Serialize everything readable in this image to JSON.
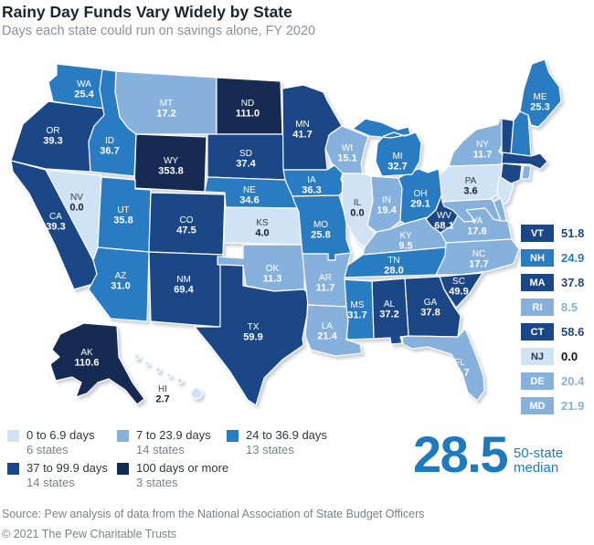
{
  "header": {
    "title": "Rainy Day Funds Vary Widely by State",
    "subtitle": "Days each state could run on savings alone, FY 2020"
  },
  "legend": {
    "categories": [
      {
        "id": 1,
        "label": "0 to 6.9 days",
        "count_label": "6 states",
        "color": "#cfe3f5",
        "text_color": "#16202a"
      },
      {
        "id": 2,
        "label": "7 to 23.9 days",
        "count_label": "14 states",
        "color": "#86b1dc",
        "text_color": "#ffffff"
      },
      {
        "id": 3,
        "label": "24 to 36.9 days",
        "count_label": "13 states",
        "color": "#2a7cc2",
        "text_color": "#ffffff"
      },
      {
        "id": 4,
        "label": "37 to 99.9 days",
        "count_label": "14 states",
        "color": "#1c4787",
        "text_color": "#ffffff"
      },
      {
        "id": 5,
        "label": "100 days or more",
        "count_label": "3 states",
        "color": "#122b52",
        "text_color": "#ffffff"
      }
    ]
  },
  "chart_data": {
    "type": "choropleth-map",
    "title": "Rainy Day Funds Vary Widely by State",
    "unit": "days",
    "states": [
      {
        "abbr": "WA",
        "value": "25.4",
        "category": 3
      },
      {
        "abbr": "OR",
        "value": "39.3",
        "category": 4
      },
      {
        "abbr": "CA",
        "value": "39.3",
        "category": 4
      },
      {
        "abbr": "NV",
        "value": "0.0",
        "category": 1
      },
      {
        "abbr": "ID",
        "value": "36.7",
        "category": 3
      },
      {
        "abbr": "MT",
        "value": "17.2",
        "category": 2
      },
      {
        "abbr": "WY",
        "value": "353.8",
        "category": 5
      },
      {
        "abbr": "UT",
        "value": "35.8",
        "category": 3
      },
      {
        "abbr": "CO",
        "value": "47.5",
        "category": 4
      },
      {
        "abbr": "AZ",
        "value": "31.0",
        "category": 3
      },
      {
        "abbr": "NM",
        "value": "69.4",
        "category": 4
      },
      {
        "abbr": "ND",
        "value": "111.0",
        "category": 5
      },
      {
        "abbr": "SD",
        "value": "37.4",
        "category": 4
      },
      {
        "abbr": "NE",
        "value": "34.6",
        "category": 3
      },
      {
        "abbr": "KS",
        "value": "4.0",
        "category": 1
      },
      {
        "abbr": "OK",
        "value": "11.3",
        "category": 2
      },
      {
        "abbr": "TX",
        "value": "59.9",
        "category": 4
      },
      {
        "abbr": "MN",
        "value": "41.7",
        "category": 4
      },
      {
        "abbr": "IA",
        "value": "36.3",
        "category": 3
      },
      {
        "abbr": "MO",
        "value": "25.8",
        "category": 3
      },
      {
        "abbr": "AR",
        "value": "11.7",
        "category": 2
      },
      {
        "abbr": "LA",
        "value": "21.4",
        "category": 2
      },
      {
        "abbr": "WI",
        "value": "15.1",
        "category": 2
      },
      {
        "abbr": "IL",
        "value": "0.0",
        "category": 1
      },
      {
        "abbr": "IN",
        "value": "19.4",
        "category": 2
      },
      {
        "abbr": "MI",
        "value": "32.7",
        "category": 3
      },
      {
        "abbr": "OH",
        "value": "29.1",
        "category": 3
      },
      {
        "abbr": "KY",
        "value": "9.5",
        "category": 2
      },
      {
        "abbr": "TN",
        "value": "28.0",
        "category": 3
      },
      {
        "abbr": "MS",
        "value": "31.7",
        "category": 3
      },
      {
        "abbr": "AL",
        "value": "37.2",
        "category": 4
      },
      {
        "abbr": "GA",
        "value": "37.8",
        "category": 4
      },
      {
        "abbr": "FL",
        "value": "16.7",
        "category": 2
      },
      {
        "abbr": "SC",
        "value": "49.9",
        "category": 4
      },
      {
        "abbr": "NC",
        "value": "17.7",
        "category": 2
      },
      {
        "abbr": "VA",
        "value": "17.6",
        "category": 2
      },
      {
        "abbr": "WV",
        "value": "68.1",
        "category": 4
      },
      {
        "abbr": "PA",
        "value": "3.6",
        "category": 1
      },
      {
        "abbr": "NY",
        "value": "11.7",
        "category": 2
      },
      {
        "abbr": "ME",
        "value": "25.3",
        "category": 3
      },
      {
        "abbr": "VT",
        "value": "51.8",
        "category": 4
      },
      {
        "abbr": "NH",
        "value": "24.9",
        "category": 3
      },
      {
        "abbr": "MA",
        "value": "37.8",
        "category": 4
      },
      {
        "abbr": "RI",
        "value": "8.5",
        "category": 2
      },
      {
        "abbr": "CT",
        "value": "58.6",
        "category": 4
      },
      {
        "abbr": "NJ",
        "value": "0.0",
        "category": 1
      },
      {
        "abbr": "DE",
        "value": "20.4",
        "category": 2
      },
      {
        "abbr": "MD",
        "value": "21.9",
        "category": 2
      },
      {
        "abbr": "AK",
        "value": "110.6",
        "category": 5
      },
      {
        "abbr": "HI",
        "value": "2.7",
        "category": 1
      }
    ],
    "side_list_order": [
      "VT",
      "NH",
      "MA",
      "RI",
      "CT",
      "NJ",
      "DE",
      "MD"
    ],
    "median": {
      "value": "28.5",
      "label_line1": "50-state",
      "label_line2": "median",
      "color": "#1e79c1"
    }
  },
  "footer": {
    "source": "Source: Pew analysis of data from the National Association of State Budget Officers",
    "copyright": "© 2021 The Pew Charitable Trusts"
  }
}
